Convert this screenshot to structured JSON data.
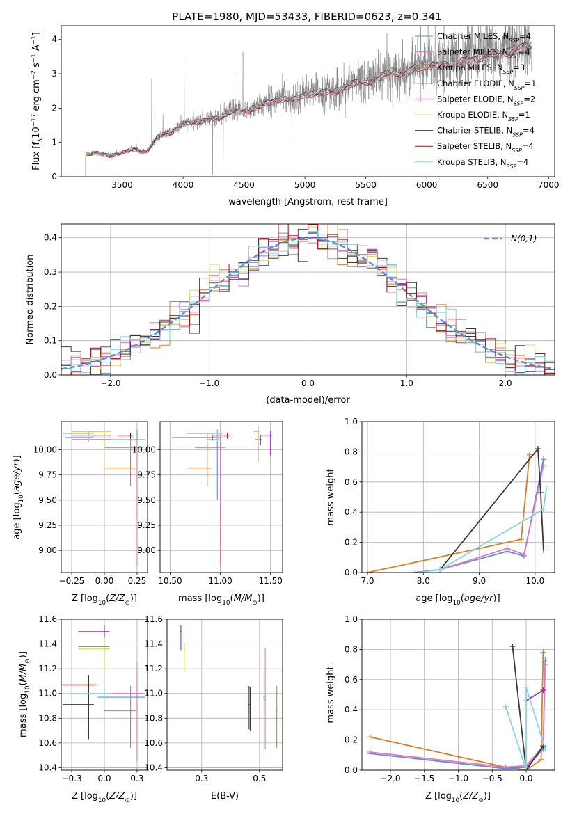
{
  "figure_title": "PLATE=1980, MJD=53433, FIBERID=0623, z=0.341",
  "colors": {
    "Chabrier MILES": "#5b8fd9",
    "Salpeter MILES": "#e377c2",
    "Kroupa MILES": "#e07b24",
    "Chabrier ELODIE": "#555555",
    "Salpeter ELODIE": "#9b2fb5",
    "Kroupa ELODIE": "#c8e05a",
    "Chabrier STELIB": "#3a3a3a",
    "Salpeter STELIB": "#c00000",
    "Kroupa STELIB": "#86d4e0",
    "data": "#808080",
    "normal": "#5b8fd9"
  },
  "legend_spectrum": [
    {
      "prefix": "Chabrier MILES, N",
      "sub": "SSP",
      "suffix": "=4",
      "model": "Chabrier MILES"
    },
    {
      "prefix": "Salpeter MILES, N",
      "sub": "SSP",
      "suffix": "=4",
      "model": "Salpeter MILES"
    },
    {
      "prefix": "Kroupa MILES, N",
      "sub": "SSP",
      "suffix": "=3",
      "model": "Kroupa MILES"
    },
    {
      "prefix": "Chabrier ELODIE, N",
      "sub": "SSP",
      "suffix": "=1",
      "model": "Chabrier ELODIE"
    },
    {
      "prefix": "Salpeter ELODIE, N",
      "sub": "SSP",
      "suffix": "=2",
      "model": "Salpeter ELODIE"
    },
    {
      "prefix": "Kroupa ELODIE, N",
      "sub": "SSP",
      "suffix": "=1",
      "model": "Kroupa ELODIE"
    },
    {
      "prefix": "Chabrier STELIB, N",
      "sub": "SSP",
      "suffix": "=4",
      "model": "Chabrier STELIB"
    },
    {
      "prefix": "Salpeter STELIB, N",
      "sub": "SSP",
      "suffix": "=4",
      "model": "Salpeter STELIB"
    },
    {
      "prefix": "Kroupa STELIB, N",
      "sub": "SSP",
      "suffix": "=4",
      "model": "Kroupa STELIB"
    }
  ],
  "chart_data": [
    {
      "type": "line",
      "panel": "spectrum",
      "xlabel": "wavelength [Angstrom, rest frame]",
      "ylabel": "Flux [f_λ10^-17 erg cm^-2 s^-1 A^-1]",
      "xlim": [
        3000,
        7050
      ],
      "ylim": [
        0,
        4.4
      ],
      "xticks": [
        3500,
        4000,
        4500,
        5000,
        5500,
        6000,
        6500,
        7000
      ],
      "yticks": [
        0,
        1,
        2,
        3,
        4
      ],
      "grid": false,
      "legend": "top-right",
      "x": [
        3200,
        3250,
        3300,
        3400,
        3500,
        3600,
        3700,
        3800,
        3900,
        4000,
        4100,
        4200,
        4300,
        4400,
        4500,
        4600,
        4700,
        4800,
        4900,
        5000,
        5100,
        5200,
        5300,
        5400,
        5500,
        5600,
        5700,
        5800,
        5900,
        6000,
        6100,
        6200,
        6300,
        6400,
        6500,
        6600,
        6700,
        6800,
        6860
      ],
      "model_y": [
        0.65,
        0.68,
        0.7,
        0.62,
        0.7,
        0.82,
        0.72,
        1.2,
        1.3,
        1.55,
        1.6,
        1.7,
        1.72,
        1.95,
        1.9,
        2.05,
        2.2,
        2.3,
        2.25,
        2.45,
        2.45,
        2.5,
        2.6,
        2.75,
        2.8,
        2.9,
        3.1,
        3.05,
        3.2,
        3.25,
        3.3,
        3.35,
        3.4,
        3.5,
        3.6,
        3.65,
        3.75,
        3.8,
        3.85
      ]
    },
    {
      "type": "line",
      "panel": "residual_distribution",
      "xlabel": "(data-model)/error",
      "ylabel": "Normed distribution",
      "xlim": [
        -2.5,
        2.5
      ],
      "ylim": [
        0,
        0.44
      ],
      "xticks": [
        -2,
        -1,
        0,
        1,
        2
      ],
      "yticks": [
        0.0,
        0.1,
        0.2,
        0.3,
        0.4
      ],
      "grid": true,
      "legend": "top-right",
      "normal_label": "N(0,1)",
      "bin_width": 0.1
    },
    {
      "type": "scatter",
      "panel": "age_vs_Z",
      "xlabel": "Z [log10(Z/Z☉)]",
      "ylabel": "age [log10(age/yr)]",
      "xlim": [
        -0.33,
        0.33
      ],
      "ylim": [
        8.78,
        10.28
      ],
      "xticks": [
        -0.25,
        0.0,
        0.25
      ],
      "yticks": [
        9.0,
        9.25,
        9.5,
        9.75,
        10.0
      ],
      "grid": true,
      "points": [
        {
          "model": "Chabrier MILES",
          "x": 0.25,
          "xerr": 0.3,
          "y": 10.1,
          "yerr": [
            0.6,
            0.1
          ]
        },
        {
          "model": "Salpeter MILES",
          "x": 0.25,
          "xerr": 0.25,
          "y": 10.02,
          "yerr": [
            1.18,
            0.1
          ]
        },
        {
          "model": "Kroupa MILES",
          "x": 0.2,
          "xerr": 0.2,
          "y": 9.82,
          "yerr": [
            0.18,
            0.35
          ]
        },
        {
          "model": "Chabrier ELODIE",
          "x": 0.0,
          "xerr": 0.25,
          "y": 10.1,
          "yerr": [
            0.05,
            0.05
          ]
        },
        {
          "model": "Salpeter ELODIE",
          "x": 0.0,
          "xerr": 0.25,
          "y": 10.14,
          "yerr": [
            0.05,
            0.05
          ]
        },
        {
          "model": "Kroupa ELODIE",
          "x": 0.0,
          "xerr": 0.25,
          "y": 10.18,
          "yerr": [
            0.2,
            0.05
          ]
        },
        {
          "model": "Chabrier STELIB",
          "x": -0.12,
          "xerr": 0.18,
          "y": 10.12,
          "yerr": [
            0.03,
            0.03
          ]
        },
        {
          "model": "Salpeter STELIB",
          "x": 0.2,
          "xerr": 0.1,
          "y": 10.14,
          "yerr": [
            0.03,
            0.03
          ]
        },
        {
          "model": "Kroupa STELIB",
          "x": -0.12,
          "xerr": 0.2,
          "y": 10.16,
          "yerr": [
            0.08,
            0.03
          ]
        }
      ]
    },
    {
      "type": "scatter",
      "panel": "age_vs_mass",
      "xlabel": "mass [log10(M/M☉)]",
      "ylabel": "",
      "xlim": [
        10.4,
        11.62
      ],
      "ylim": [
        8.78,
        10.28
      ],
      "xticks": [
        10.5,
        11.0,
        11.5
      ],
      "yticks": [
        9.0,
        9.25,
        9.5,
        9.75,
        10.0
      ],
      "grid": true,
      "points": [
        {
          "model": "Chabrier MILES",
          "x": 10.97,
          "xerr": 0.1,
          "y": 10.1,
          "yerr": [
            0.6,
            0.1
          ]
        },
        {
          "model": "Salpeter MILES",
          "x": 11.0,
          "xerr": 0.25,
          "y": 10.02,
          "yerr": [
            1.18,
            0.1
          ]
        },
        {
          "model": "Kroupa MILES",
          "x": 10.87,
          "xerr": 0.2,
          "y": 9.82,
          "yerr": [
            0.18,
            0.35
          ]
        },
        {
          "model": "Chabrier ELODIE",
          "x": 11.4,
          "xerr": 0.05,
          "y": 10.1,
          "yerr": [
            0.05,
            0.05
          ]
        },
        {
          "model": "Salpeter ELODIE",
          "x": 11.5,
          "xerr": 0.1,
          "y": 10.14,
          "yerr": [
            0.2,
            0.05
          ]
        },
        {
          "model": "Kroupa ELODIE",
          "x": 11.38,
          "xerr": 0.05,
          "y": 10.18,
          "yerr": [
            0.3,
            0.05
          ]
        },
        {
          "model": "Chabrier STELIB",
          "x": 10.92,
          "xerr": 0.4,
          "y": 10.12,
          "yerr": [
            0.03,
            0.03
          ]
        },
        {
          "model": "Salpeter STELIB",
          "x": 11.07,
          "xerr": 0.15,
          "y": 10.14,
          "yerr": [
            0.03,
            0.03
          ]
        },
        {
          "model": "Kroupa STELIB",
          "x": 10.97,
          "xerr": 0.3,
          "y": 10.16,
          "yerr": [
            0.08,
            0.03
          ]
        }
      ]
    },
    {
      "type": "line",
      "panel": "mass_weight_vs_age",
      "xlabel": "age [log10(age/yr)]",
      "ylabel": "mass weight",
      "xlim": [
        6.9,
        10.35
      ],
      "ylim": [
        0,
        1.0
      ],
      "xticks": [
        7,
        8,
        9,
        10
      ],
      "yticks": [
        0.0,
        0.2,
        0.4,
        0.6,
        0.8,
        1.0
      ],
      "grid": true,
      "series": [
        {
          "model": "Kroupa MILES",
          "x": [
            7.0,
            9.75,
            9.9
          ],
          "y": [
            0.0,
            0.22,
            0.78
          ]
        },
        {
          "model": "Chabrier MILES",
          "x": [
            8.3,
            9.5,
            9.8,
            10.15
          ],
          "y": [
            0.02,
            0.14,
            0.11,
            0.75
          ]
        },
        {
          "model": "Salpeter MILES",
          "x": [
            8.3,
            9.5,
            9.8,
            10.15
          ],
          "y": [
            0.02,
            0.16,
            0.12,
            0.71
          ]
        },
        {
          "model": "Chabrier STELIB",
          "x": [
            7.85,
            8.3,
            10.05,
            10.1,
            10.15
          ],
          "y": [
            0.0,
            0.02,
            0.82,
            0.53,
            0.15
          ]
        },
        {
          "model": "Kroupa STELIB",
          "x": [
            7.9,
            8.3,
            10.15,
            10.2
          ],
          "y": [
            0.0,
            0.02,
            0.42,
            0.56
          ]
        }
      ]
    },
    {
      "type": "scatter",
      "panel": "mass_vs_Z",
      "xlabel": "Z [log10(Z/Z☉)]",
      "ylabel": "mass [log10(M/M☉)]",
      "xlim": [
        -0.33,
        0.33
      ],
      "ylim": [
        10.38,
        11.6
      ],
      "xticks": [
        -0.25,
        0.0,
        0.25
      ],
      "yticks": [
        10.4,
        10.6,
        10.8,
        11.0,
        11.2,
        11.4,
        11.6
      ],
      "grid": true,
      "points": [
        {
          "model": "Chabrier MILES",
          "x": 0.25,
          "xerr": 0.3,
          "y": 10.97,
          "yerr": [
            0.5,
            0.2
          ]
        },
        {
          "model": "Salpeter MILES",
          "x": 0.25,
          "xerr": 0.25,
          "y": 11.0,
          "yerr": [
            0.55,
            0.25
          ]
        },
        {
          "model": "Kroupa MILES",
          "x": 0.2,
          "xerr": 0.2,
          "y": 10.86,
          "yerr": [
            0.3,
            0.2
          ]
        },
        {
          "model": "Chabrier ELODIE",
          "x": 0.0,
          "xerr": 0.2,
          "y": 11.38,
          "yerr": [
            0.05,
            0.05
          ]
        },
        {
          "model": "Salpeter ELODIE",
          "x": 0.0,
          "xerr": 0.2,
          "y": 11.5,
          "yerr": [
            0.05,
            0.05
          ]
        },
        {
          "model": "Kroupa ELODIE",
          "x": 0.0,
          "xerr": 0.2,
          "y": 11.36,
          "yerr": [
            0.2,
            0.08
          ]
        },
        {
          "model": "Chabrier STELIB",
          "x": -0.12,
          "xerr": 0.2,
          "y": 10.91,
          "yerr": [
            0.28,
            0.2
          ]
        },
        {
          "model": "Salpeter STELIB",
          "x": -0.12,
          "xerr": 0.3,
          "y": 11.07,
          "yerr": [
            0.35,
            0.08
          ]
        },
        {
          "model": "Kroupa STELIB",
          "x": 0.0,
          "xerr": 0.28,
          "y": 11.0,
          "yerr": [
            0.05,
            0.05
          ]
        }
      ]
    },
    {
      "type": "scatter",
      "panel": "mass_vs_EBV",
      "xlabel": "E(B-V)",
      "ylabel": "",
      "xlim": [
        0.1,
        0.6
      ],
      "ylim": [
        10.38,
        11.6
      ],
      "xticks": [
        0.25,
        0.5
      ],
      "yticks": [
        10.4,
        10.6,
        10.8,
        11.0,
        11.2,
        11.4,
        11.6
      ],
      "grid": true,
      "points": [
        {
          "model": "Salpeter ELODIE",
          "x": 0.16,
          "y": 11.5,
          "yerr": [
            0.15,
            0.05
          ]
        },
        {
          "model": "Kroupa ELODIE",
          "x": 0.175,
          "y": 11.36,
          "yerr": [
            0.18,
            0.05
          ]
        },
        {
          "model": "Chabrier STELIB",
          "x": 0.455,
          "y": 10.91,
          "yerr": [
            0.2,
            0.15
          ]
        },
        {
          "model": "Salpeter STELIB",
          "x": 0.46,
          "y": 10.85,
          "yerr": [
            0.15,
            0.2
          ]
        },
        {
          "model": "Chabrier MILES",
          "x": 0.52,
          "y": 10.97,
          "yerr": [
            0.5,
            0.2
          ]
        },
        {
          "model": "Salpeter MILES",
          "x": 0.525,
          "y": 10.95,
          "yerr": [
            0.4,
            0.42
          ]
        },
        {
          "model": "Kroupa MILES",
          "x": 0.575,
          "y": 10.86,
          "yerr": [
            0.3,
            0.2
          ]
        }
      ]
    },
    {
      "type": "line",
      "panel": "mass_weight_vs_Z",
      "xlabel": "Z [log10(Z/Z☉)]",
      "ylabel": "mass weight",
      "xlim": [
        -2.42,
        0.42
      ],
      "ylim": [
        0,
        1.0
      ],
      "xticks": [
        -2.0,
        -1.5,
        -1.0,
        -0.5,
        0.0
      ],
      "yticks": [
        0.0,
        0.2,
        0.4,
        0.6,
        0.8,
        1.0
      ],
      "grid": true,
      "series": [
        {
          "model": "Kroupa MILES",
          "x": [
            -2.3,
            -0.3,
            0.0,
            0.22,
            0.25
          ],
          "y": [
            0.22,
            0.02,
            0.0,
            0.07,
            0.78
          ]
        },
        {
          "model": "Chabrier MILES",
          "x": [
            -2.3,
            -0.3,
            0.0,
            0.25,
            0.28
          ],
          "y": [
            0.11,
            0.01,
            0.02,
            0.14,
            0.73
          ]
        },
        {
          "model": "Salpeter MILES",
          "x": [
            -2.3,
            -0.3,
            0.0,
            0.25,
            0.28
          ],
          "y": [
            0.12,
            0.02,
            0.03,
            0.16,
            0.7
          ]
        },
        {
          "model": "Salpeter ELODIE",
          "x": [
            0.0,
            0.25
          ],
          "y": [
            0.46,
            0.53
          ]
        },
        {
          "model": "Chabrier STELIB",
          "x": [
            -0.2,
            0.0,
            0.25
          ],
          "y": [
            0.82,
            0.0,
            0.16
          ]
        },
        {
          "model": "Kroupa STELIB",
          "x": [
            -0.3,
            0.0,
            0.0,
            0.28
          ],
          "y": [
            0.42,
            0.0,
            0.55,
            0.14
          ]
        }
      ]
    }
  ]
}
